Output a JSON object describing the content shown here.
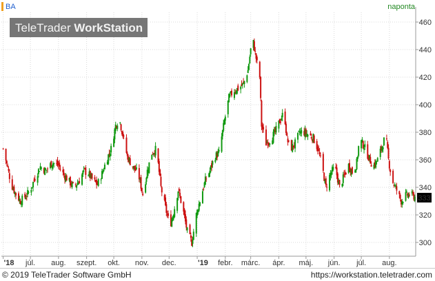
{
  "header": {
    "symbol": "BA",
    "period": "naponta",
    "brand_light": "TeleTrader",
    "brand_bold": "WorkStation",
    "last_price": "333"
  },
  "footer": {
    "copyright": "© 2019 TeleTrader Software GmbH",
    "url": "https://workstation.teletrader.com"
  },
  "colors": {
    "up": "#119911",
    "down": "#cc1111",
    "grid": "#d8d8d8",
    "axis": "#999999",
    "logo_bg": "#6a6a6a"
  },
  "chart_data": {
    "type": "candlestick",
    "symbol": "BA",
    "period": "naponta",
    "ylim": [
      290,
      467
    ],
    "yticks": [
      300,
      320,
      340,
      360,
      380,
      400,
      420,
      440,
      460
    ],
    "grid": true,
    "last_value": 333,
    "x_tick_labels": [
      "'18",
      "júl.",
      "aug.",
      "szept.",
      "okt.",
      "nov.",
      "dec.",
      "'19",
      "febr.",
      "márc.",
      "ápr.",
      "máj.",
      "jún.",
      "júl.",
      "aug."
    ],
    "x_tick_dates": [
      "2018-06-01",
      "2018-07-01",
      "2018-08-01",
      "2018-09-01",
      "2018-10-01",
      "2018-11-01",
      "2018-12-01",
      "2019-01-01",
      "2019-02-01",
      "2019-03-01",
      "2019-04-01",
      "2019-05-01",
      "2019-06-01",
      "2019-07-01",
      "2019-08-01"
    ],
    "x_range": [
      "2018-05-30",
      "2019-08-30"
    ],
    "series": [
      {
        "close_path": [
          [
            "2018-06-01",
            368
          ],
          [
            "2018-06-05",
            357
          ],
          [
            "2018-06-10",
            342
          ],
          [
            "2018-06-15",
            335
          ],
          [
            "2018-06-20",
            330
          ],
          [
            "2018-06-25",
            333
          ],
          [
            "2018-07-01",
            338
          ],
          [
            "2018-07-06",
            347
          ],
          [
            "2018-07-12",
            355
          ],
          [
            "2018-07-18",
            352
          ],
          [
            "2018-07-25",
            358
          ],
          [
            "2018-08-01",
            356
          ],
          [
            "2018-08-06",
            350
          ],
          [
            "2018-08-12",
            345
          ],
          [
            "2018-08-18",
            340
          ],
          [
            "2018-08-24",
            345
          ],
          [
            "2018-08-29",
            352
          ],
          [
            "2018-09-03",
            350
          ],
          [
            "2018-09-08",
            345
          ],
          [
            "2018-09-13",
            342
          ],
          [
            "2018-09-18",
            350
          ],
          [
            "2018-09-23",
            360
          ],
          [
            "2018-09-28",
            368
          ],
          [
            "2018-10-03",
            385
          ],
          [
            "2018-10-07",
            390
          ],
          [
            "2018-10-11",
            378
          ],
          [
            "2018-10-16",
            362
          ],
          [
            "2018-10-22",
            355
          ],
          [
            "2018-10-28",
            350
          ],
          [
            "2018-11-02",
            335
          ],
          [
            "2018-11-07",
            352
          ],
          [
            "2018-11-12",
            365
          ],
          [
            "2018-11-17",
            368
          ],
          [
            "2018-11-22",
            340
          ],
          [
            "2018-11-27",
            325
          ],
          [
            "2018-12-02",
            312
          ],
          [
            "2018-12-06",
            322
          ],
          [
            "2018-12-11",
            338
          ],
          [
            "2018-12-16",
            325
          ],
          [
            "2018-12-21",
            308
          ],
          [
            "2018-12-26",
            300
          ],
          [
            "2018-12-31",
            320
          ],
          [
            "2019-01-05",
            333
          ],
          [
            "2019-01-10",
            345
          ],
          [
            "2019-01-15",
            352
          ],
          [
            "2019-01-20",
            362
          ],
          [
            "2019-01-25",
            365
          ],
          [
            "2019-01-31",
            388
          ],
          [
            "2019-02-05",
            405
          ],
          [
            "2019-02-10",
            410
          ],
          [
            "2019-02-16",
            412
          ],
          [
            "2019-02-21",
            415
          ],
          [
            "2019-02-26",
            425
          ],
          [
            "2019-03-01",
            440
          ],
          [
            "2019-03-04",
            445
          ],
          [
            "2019-03-08",
            430
          ],
          [
            "2019-03-11",
            420
          ],
          [
            "2019-03-13",
            385
          ],
          [
            "2019-03-18",
            372
          ],
          [
            "2019-03-23",
            375
          ],
          [
            "2019-03-28",
            380
          ],
          [
            "2019-04-02",
            388
          ],
          [
            "2019-04-07",
            395
          ],
          [
            "2019-04-10",
            375
          ],
          [
            "2019-04-14",
            368
          ],
          [
            "2019-04-19",
            372
          ],
          [
            "2019-04-24",
            380
          ],
          [
            "2019-04-29",
            380
          ],
          [
            "2019-05-04",
            378
          ],
          [
            "2019-05-09",
            376
          ],
          [
            "2019-05-14",
            368
          ],
          [
            "2019-05-18",
            358
          ],
          [
            "2019-05-23",
            340
          ],
          [
            "2019-05-28",
            350
          ],
          [
            "2019-06-02",
            355
          ],
          [
            "2019-06-07",
            340
          ],
          [
            "2019-06-12",
            348
          ],
          [
            "2019-06-17",
            356
          ],
          [
            "2019-06-22",
            350
          ],
          [
            "2019-06-26",
            358
          ],
          [
            "2019-06-29",
            375
          ],
          [
            "2019-07-04",
            370
          ],
          [
            "2019-07-09",
            362
          ],
          [
            "2019-07-14",
            355
          ],
          [
            "2019-07-19",
            360
          ],
          [
            "2019-07-24",
            370
          ],
          [
            "2019-07-28",
            378
          ],
          [
            "2019-07-31",
            360
          ],
          [
            "2019-08-04",
            345
          ],
          [
            "2019-08-09",
            338
          ],
          [
            "2019-08-14",
            330
          ],
          [
            "2019-08-19",
            334
          ],
          [
            "2019-08-24",
            335
          ],
          [
            "2019-08-29",
            333
          ]
        ]
      }
    ]
  }
}
